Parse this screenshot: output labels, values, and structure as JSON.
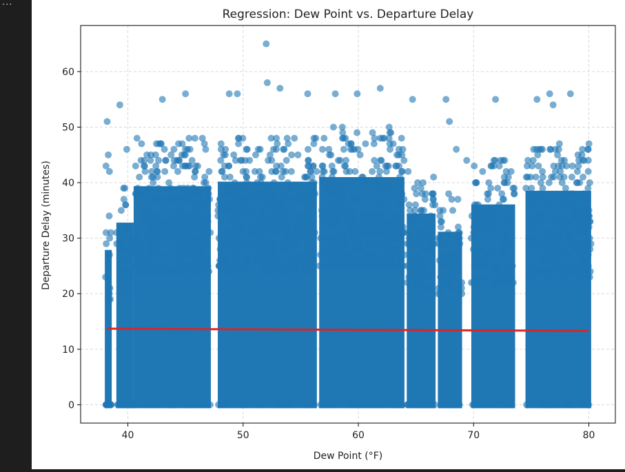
{
  "output_cell": {
    "overflow_indicator": "..."
  },
  "chart_data": {
    "type": "scatter",
    "title": "Regression: Dew Point vs. Departure Delay",
    "xlabel": "Dew Point (°F)",
    "ylabel": "Departure Delay (minutes)",
    "xlim": [
      35.9,
      82.3
    ],
    "ylim": [
      -3.3,
      68.3
    ],
    "xticks": [
      40,
      50,
      60,
      70,
      80
    ],
    "yticks": [
      0,
      10,
      20,
      30,
      40,
      50,
      60
    ],
    "grid": true,
    "scatter_color": "#1f77b4",
    "regression_color": "#d62728",
    "regression_line": {
      "x": [
        38.2,
        80.0
      ],
      "y": [
        13.7,
        13.3
      ]
    },
    "clusters": [
      {
        "x": [
          38.0,
          38.6
        ],
        "y_max": 34,
        "density": 0.5
      },
      {
        "x": [
          39.0,
          40.5
        ],
        "y_max": 40,
        "density": 0.6
      },
      {
        "x": [
          40.5,
          47.2
        ],
        "y_max": 48,
        "density": 1.0
      },
      {
        "x": [
          47.8,
          56.4
        ],
        "y_max": 49,
        "density": 1.0
      },
      {
        "x": [
          56.6,
          64.0
        ],
        "y_max": 50,
        "density": 1.0
      },
      {
        "x": [
          64.2,
          66.7
        ],
        "y_max": 42,
        "density": 0.75
      },
      {
        "x": [
          66.9,
          69.0
        ],
        "y_max": 38,
        "density": 0.6
      },
      {
        "x": [
          69.8,
          73.6
        ],
        "y_max": 44,
        "density": 0.8
      },
      {
        "x": [
          74.5,
          80.2
        ],
        "y_max": 47,
        "density": 1.0
      }
    ],
    "outliers": [
      {
        "x": 52.0,
        "y": 65
      },
      {
        "x": 52.1,
        "y": 58
      },
      {
        "x": 61.9,
        "y": 57
      },
      {
        "x": 53.2,
        "y": 57
      },
      {
        "x": 45.0,
        "y": 56
      },
      {
        "x": 48.8,
        "y": 56
      },
      {
        "x": 49.5,
        "y": 56
      },
      {
        "x": 55.6,
        "y": 56
      },
      {
        "x": 58.0,
        "y": 56
      },
      {
        "x": 59.9,
        "y": 56
      },
      {
        "x": 76.6,
        "y": 56
      },
      {
        "x": 78.4,
        "y": 56
      },
      {
        "x": 43.0,
        "y": 55
      },
      {
        "x": 64.7,
        "y": 55
      },
      {
        "x": 67.6,
        "y": 55
      },
      {
        "x": 71.9,
        "y": 55
      },
      {
        "x": 75.5,
        "y": 55
      },
      {
        "x": 39.3,
        "y": 54
      },
      {
        "x": 76.9,
        "y": 54
      },
      {
        "x": 38.2,
        "y": 51
      },
      {
        "x": 39.9,
        "y": 46
      },
      {
        "x": 38.3,
        "y": 45
      },
      {
        "x": 38.1,
        "y": 43
      },
      {
        "x": 38.4,
        "y": 42
      },
      {
        "x": 68.5,
        "y": 46
      },
      {
        "x": 69.4,
        "y": 44
      },
      {
        "x": 67.9,
        "y": 51
      }
    ]
  }
}
